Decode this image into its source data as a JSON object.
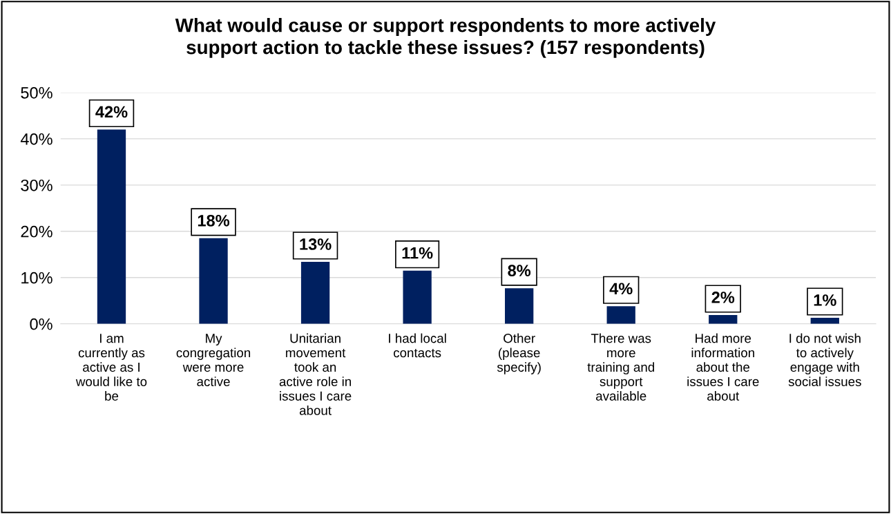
{
  "chart_data": {
    "type": "bar",
    "title": "What would cause or support respondents to more actively\nsupport action to tackle these issues? (157 respondents)",
    "categories": [
      "I am\ncurrently as\nactive as I\nwould like to\nbe",
      "My\ncongregation\nwere more\nactive",
      "Unitarian\nmovement\ntook an\nactive role in\nissues I care\nabout",
      "I had local\ncontacts",
      "Other\n(please\nspecify)",
      "There was\nmore\ntraining and\nsupport\navailable",
      "Had more\ninformation\nabout the\nissues I care\nabout",
      "I do not wish\nto actively\nengage with\nsocial issues"
    ],
    "values": [
      42.0,
      18.5,
      13.4,
      11.5,
      7.7,
      3.8,
      1.9,
      1.3
    ],
    "value_labels": [
      "42%",
      "18%",
      "13%",
      "11%",
      "8%",
      "4%",
      "2%",
      "1%"
    ],
    "color": "#002060",
    "ylim": [
      0,
      50
    ],
    "yticks": [
      {
        "value": 0,
        "label": "0%"
      },
      {
        "value": 10,
        "label": "10%"
      },
      {
        "value": 20,
        "label": "20%"
      },
      {
        "value": 30,
        "label": "30%"
      },
      {
        "value": 40,
        "label": "40%"
      },
      {
        "value": 50,
        "label": "50%"
      }
    ],
    "grid": "y"
  }
}
